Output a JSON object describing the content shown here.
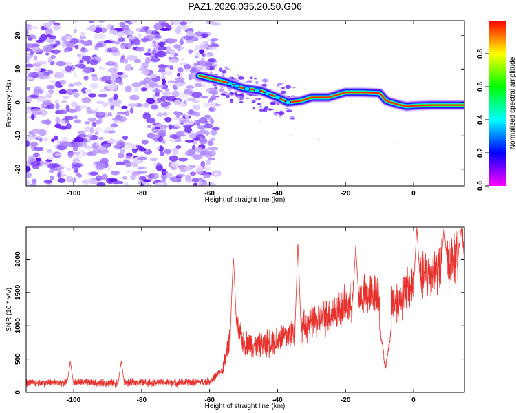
{
  "title": "PAZ1.2026.035.20.50.G06",
  "chart_data": [
    {
      "type": "heatmap",
      "xlabel": "Height of straight line (km)",
      "ylabel": "Frequency (Hz)",
      "xlim": [
        -114,
        15
      ],
      "ylim": [
        -25,
        24.5
      ],
      "xticks": [
        -100,
        -80,
        -60,
        -40,
        -20,
        0
      ],
      "yticks": [
        20,
        10,
        0,
        -10,
        -20
      ],
      "noise_region_x": [
        -114,
        -58
      ],
      "track": {
        "description_points_x": [
          -63,
          -55,
          -50,
          -45,
          -40,
          -37,
          -33,
          -30,
          -25,
          -20,
          -15,
          -10,
          -8,
          -5,
          -2,
          0,
          5,
          10,
          15
        ],
        "description_points_y": [
          8,
          6,
          4.2,
          3.5,
          1.5,
          0,
          0.5,
          1.5,
          1.5,
          3,
          3,
          2.8,
          0.5,
          -0.5,
          -1.2,
          -1,
          -0.8,
          -0.8,
          -0.8
        ]
      },
      "colorbar": {
        "label": "Normalized spectral amplitude",
        "range": [
          0,
          1
        ],
        "ticks": [
          "0.0",
          "0.2",
          "0.4",
          "0.6",
          "0.8"
        ],
        "tick_values": [
          0,
          0.2,
          0.4,
          0.6,
          0.8
        ],
        "colors": [
          "#ff00ff",
          "#0000ff",
          "#00ffff",
          "#00ff00",
          "#ffff00",
          "#ff0000"
        ]
      }
    },
    {
      "type": "line",
      "xlabel": "Height of straight line (km)",
      "ylabel": "SNR (10 * v/v)",
      "xlim": [
        -114,
        15
      ],
      "ylim": [
        0,
        2480
      ],
      "xticks": [
        -100,
        -80,
        -60,
        -40,
        -20,
        0
      ],
      "yticks": [
        0,
        500,
        1000,
        1500,
        2000
      ],
      "line_color": "#e8302c",
      "trend_x": [
        -114,
        -100,
        -90,
        -80,
        -70,
        -60,
        -56,
        -53,
        -50,
        -45,
        -40,
        -35,
        -30,
        -25,
        -20,
        -15,
        -10,
        -5,
        0,
        5,
        10,
        15
      ],
      "trend_y": [
        140,
        150,
        140,
        150,
        145,
        160,
        350,
        1100,
        750,
        700,
        800,
        900,
        1050,
        1150,
        1300,
        1450,
        1500,
        1350,
        1650,
        1800,
        1950,
        2050
      ],
      "peaks_x": [
        -101,
        -86,
        -53,
        -34,
        -17,
        1,
        9,
        14
      ],
      "peaks_y": [
        470,
        470,
        2030,
        2260,
        2200,
        2480,
        2480,
        2450
      ]
    }
  ]
}
